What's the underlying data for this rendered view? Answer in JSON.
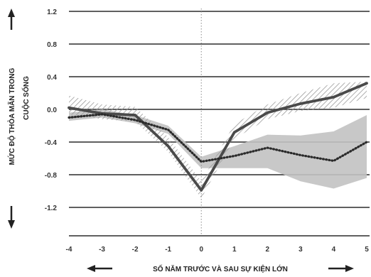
{
  "chart_data": {
    "type": "line",
    "xlabel": "SỐ NĂM TRƯỚC VÀ SAU SỰ KIỆN LỚN",
    "ylabel_line1": "MỨC ĐỘ THỎA MÃN TRONG",
    "ylabel_line2": "CUỘC SỐNG",
    "x": [
      -4,
      -3,
      -2,
      -1,
      0,
      1,
      2,
      3,
      4,
      5
    ],
    "x_tick_labels": [
      "-4",
      "-3",
      "-2",
      "-1",
      "0",
      "1",
      "2",
      "3",
      "4",
      "5"
    ],
    "y_ticks": [
      1.2,
      0.8,
      0.4,
      0.0,
      -0.4,
      -0.8,
      -1.2
    ],
    "y_tick_labels": [
      "1.2",
      "0.8",
      "0.4",
      "0.0",
      "-0.4",
      "-0.8",
      "-1.2"
    ],
    "ylim": [
      -1.5,
      1.25
    ],
    "xlim": [
      -4,
      5
    ],
    "grid": "horizontal",
    "reference_line_x": 0,
    "series": [
      {
        "style": "solid",
        "color": "#4a4a4a",
        "values": [
          0.02,
          -0.05,
          -0.07,
          -0.45,
          -0.99,
          -0.28,
          -0.04,
          0.07,
          0.15,
          0.32
        ],
        "band_style": "hatched",
        "band_color": "#9a9a9a",
        "band_low": [
          -0.06,
          -0.12,
          -0.15,
          -0.52,
          -1.09,
          -0.36,
          -0.12,
          -0.02,
          0.02,
          0.14
        ],
        "band_high": [
          0.17,
          0.06,
          0.03,
          -0.34,
          -0.88,
          -0.18,
          0.06,
          0.2,
          0.32,
          0.34
        ]
      },
      {
        "style": "dotted",
        "color": "#2a2a2a",
        "values": [
          -0.1,
          -0.06,
          -0.13,
          -0.25,
          -0.64,
          -0.57,
          -0.47,
          -0.56,
          -0.63,
          -0.4
        ],
        "band_style": "solid",
        "band_color": "#c2c2c2",
        "band_low": [
          -0.14,
          -0.1,
          -0.17,
          -0.3,
          -0.72,
          -0.72,
          -0.72,
          -0.88,
          -0.97,
          -0.84
        ],
        "band_high": [
          -0.04,
          0.0,
          -0.07,
          -0.2,
          -0.58,
          -0.45,
          -0.31,
          -0.32,
          -0.27,
          -0.07
        ]
      }
    ]
  }
}
